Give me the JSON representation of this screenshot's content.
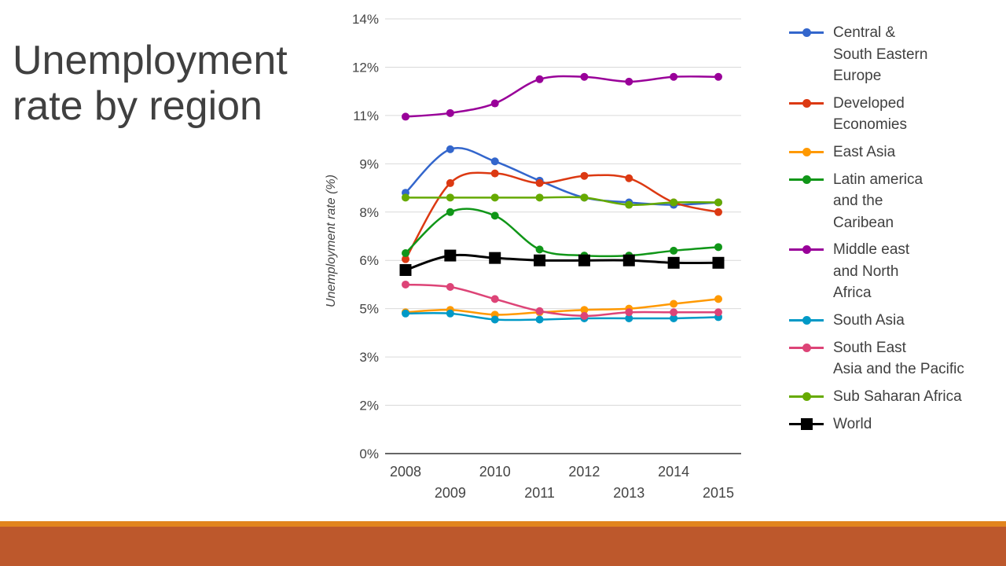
{
  "slide": {
    "title_line1": "Unemployment",
    "title_line2": "rate by region"
  },
  "colors": {
    "title": "#404040",
    "footer_thin": "#e2841e",
    "footer_thick": "#bd582c",
    "grid": "#d9d9d9",
    "axis": "#333333"
  },
  "chart_data": {
    "type": "line",
    "title": "",
    "xlabel": "",
    "ylabel": "Unemployment rate (%)",
    "x": [
      "2008",
      "2009",
      "2010",
      "2011",
      "2012",
      "2013",
      "2014",
      "2015"
    ],
    "y_ticks": [
      "0%",
      "2%",
      "3%",
      "5%",
      "6%",
      "8%",
      "9%",
      "11%",
      "12%",
      "14%"
    ],
    "ylim": [
      0,
      14
    ],
    "grid": true,
    "legend_position": "right",
    "series": [
      {
        "name": "Central &\nSouth Eastern\nEurope",
        "color": "#3366cc",
        "marker": "circle",
        "values": [
          8.4,
          9.6,
          9.1,
          8.65,
          8.3,
          8.2,
          8.15,
          8.2
        ]
      },
      {
        "name": "Developed\nEconomies",
        "color": "#dc3912",
        "marker": "circle",
        "values": [
          6.05,
          8.6,
          8.8,
          8.6,
          8.75,
          8.7,
          8.2,
          8.0
        ]
      },
      {
        "name": "East Asia",
        "color": "#ff9900",
        "marker": "circle",
        "values": [
          4.85,
          4.95,
          4.75,
          4.85,
          4.95,
          5.0,
          5.1,
          5.2
        ]
      },
      {
        "name": "Latin america\nand the\nCaribean",
        "color": "#109618",
        "marker": "circle",
        "values": [
          6.3,
          8.0,
          7.85,
          6.45,
          6.2,
          6.2,
          6.4,
          6.55
        ]
      },
      {
        "name": "Middle east\nand North\nAfrica",
        "color": "#990099",
        "marker": "circle",
        "values": [
          10.95,
          11.05,
          11.25,
          11.75,
          11.8,
          11.7,
          11.8,
          11.8
        ]
      },
      {
        "name": "South Asia",
        "color": "#0099c6",
        "marker": "circle",
        "values": [
          4.8,
          4.8,
          4.55,
          4.55,
          4.6,
          4.6,
          4.6,
          4.65
        ]
      },
      {
        "name": "South East\nAsia and the Pacific",
        "color": "#dd4477",
        "marker": "circle",
        "values": [
          5.5,
          5.45,
          5.2,
          4.9,
          4.7,
          4.85,
          4.85,
          4.85
        ]
      },
      {
        "name": "Sub Saharan  Africa",
        "color": "#66aa00",
        "marker": "circle",
        "values": [
          8.3,
          8.3,
          8.3,
          8.3,
          8.3,
          8.15,
          8.2,
          8.2
        ]
      },
      {
        "name": "World",
        "color": "#000000",
        "marker": "square",
        "values": [
          5.8,
          6.2,
          6.1,
          6.0,
          6.0,
          6.0,
          5.95,
          5.95
        ]
      }
    ]
  }
}
